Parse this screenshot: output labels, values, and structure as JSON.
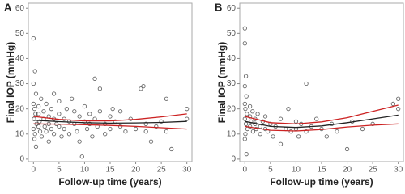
{
  "chart_data": [
    {
      "type": "scatter",
      "title": "A",
      "xlabel": "Follow-up time (years)",
      "ylabel": "Final IOP (mmHg)",
      "xlim": [
        -1,
        31
      ],
      "ylim": [
        -1,
        62
      ],
      "xticks": [
        0,
        5,
        10,
        15,
        20,
        25,
        30
      ],
      "yticks": [
        0,
        10,
        20,
        30,
        40,
        50,
        60
      ],
      "series": [
        {
          "mode": "markers",
          "color": "#444444",
          "x": [
            0,
            0.3,
            0,
            0.5,
            0,
            0.2,
            0.4,
            0.1,
            0.6,
            0,
            0.3,
            0.2,
            0.5,
            1,
            1,
            1.2,
            1,
            1.3,
            1.5,
            1.6,
            2,
            2,
            2.2,
            2.5,
            2.5,
            3,
            3,
            3,
            3.5,
            3.5,
            4,
            4,
            4,
            4.5,
            5,
            5,
            5,
            5.5,
            6,
            6,
            6.5,
            7,
            7,
            7.5,
            8,
            8,
            8.5,
            9,
            9,
            9.5,
            10,
            10,
            10.5,
            11,
            11,
            11.5,
            12,
            12,
            12.5,
            13,
            13,
            14,
            14,
            15,
            15,
            15.5,
            16,
            17,
            17,
            18,
            19,
            20,
            21,
            21.5,
            22,
            22,
            23,
            24,
            25,
            26,
            26,
            27,
            30,
            30
          ],
          "values": [
            48,
            35,
            30,
            26,
            22,
            20,
            18,
            16,
            14,
            12,
            10,
            8,
            5,
            21,
            18,
            15,
            13,
            11,
            24,
            9,
            19,
            16,
            13,
            22,
            11,
            17,
            14,
            7,
            20,
            12,
            16,
            26,
            10,
            14,
            18,
            13,
            23,
            9,
            16,
            12,
            20,
            15,
            10,
            24,
            14,
            19,
            11,
            17,
            7,
            1,
            15,
            21,
            12,
            18,
            14,
            9,
            32,
            16,
            13,
            28,
            19,
            14,
            10,
            17,
            12,
            20,
            15,
            19,
            13,
            11,
            16,
            12,
            28,
            29,
            14,
            11,
            7,
            13,
            15,
            24,
            11,
            4,
            20,
            16
          ]
        },
        {
          "mode": "line",
          "color": "#222222",
          "x": [
            0,
            5,
            10,
            15,
            20,
            25,
            30
          ],
          "values": [
            15.5,
            14.9,
            14.5,
            14.3,
            14.4,
            14.6,
            15
          ]
        },
        {
          "mode": "line",
          "color": "#cc2222",
          "x": [
            0,
            5,
            10,
            15,
            20,
            25,
            30
          ],
          "values": [
            17,
            15.8,
            15.2,
            15.2,
            15.8,
            16.8,
            18
          ]
        },
        {
          "mode": "line",
          "color": "#cc2222",
          "x": [
            0,
            5,
            10,
            15,
            20,
            25,
            30
          ],
          "values": [
            14,
            13.9,
            13.7,
            13.4,
            13,
            12.5,
            12
          ]
        }
      ]
    },
    {
      "type": "scatter",
      "title": "B",
      "xlabel": "Follow-up time (years)",
      "ylabel": "Final IOP (mmHg)",
      "xlim": [
        -1,
        31
      ],
      "ylim": [
        -1,
        62
      ],
      "xticks": [
        0,
        5,
        10,
        15,
        20,
        25,
        30
      ],
      "yticks": [
        0,
        10,
        20,
        30,
        40,
        50,
        60
      ],
      "series": [
        {
          "mode": "markers",
          "color": "#444444",
          "x": [
            0,
            0,
            0.2,
            0,
            0.3,
            0,
            0.1,
            0.4,
            0,
            0.2,
            0.5,
            0.1,
            0,
            0.3,
            1,
            1,
            1.2,
            1,
            1.5,
            1.6,
            2,
            2,
            2.2,
            2.5,
            3,
            3,
            3.5,
            4,
            4,
            4.5,
            5,
            5.5,
            6,
            7,
            7,
            8,
            8.5,
            9,
            10,
            10,
            10.5,
            11,
            12,
            12,
            13,
            14,
            15,
            16,
            17,
            18,
            20,
            21,
            23,
            25,
            29,
            30,
            30
          ],
          "values": [
            52,
            46,
            33,
            29,
            25,
            22,
            20,
            18,
            16,
            14,
            12,
            10,
            8,
            2,
            21,
            17,
            15,
            13,
            19,
            11,
            16,
            14,
            12,
            18,
            13,
            10,
            15,
            12,
            17,
            11,
            14,
            9,
            13,
            16,
            6,
            12,
            20,
            11,
            15,
            12,
            9,
            14,
            30,
            11,
            13,
            16,
            12,
            9,
            14,
            11,
            4,
            15,
            12,
            14,
            22,
            24,
            20
          ]
        },
        {
          "mode": "line",
          "color": "#222222",
          "x": [
            0,
            5,
            10,
            15,
            20,
            25,
            30
          ],
          "values": [
            15,
            13,
            12.6,
            13.2,
            14.5,
            16,
            17.5
          ]
        },
        {
          "mode": "line",
          "color": "#cc2222",
          "x": [
            0,
            5,
            10,
            15,
            20,
            25,
            30
          ],
          "values": [
            17,
            14.5,
            14,
            14.8,
            16.5,
            19,
            21.5
          ]
        },
        {
          "mode": "line",
          "color": "#cc2222",
          "x": [
            0,
            5,
            10,
            15,
            20,
            25,
            30
          ],
          "values": [
            13,
            11.5,
            11.2,
            11.8,
            12.8,
            13.5,
            14
          ]
        }
      ]
    }
  ]
}
